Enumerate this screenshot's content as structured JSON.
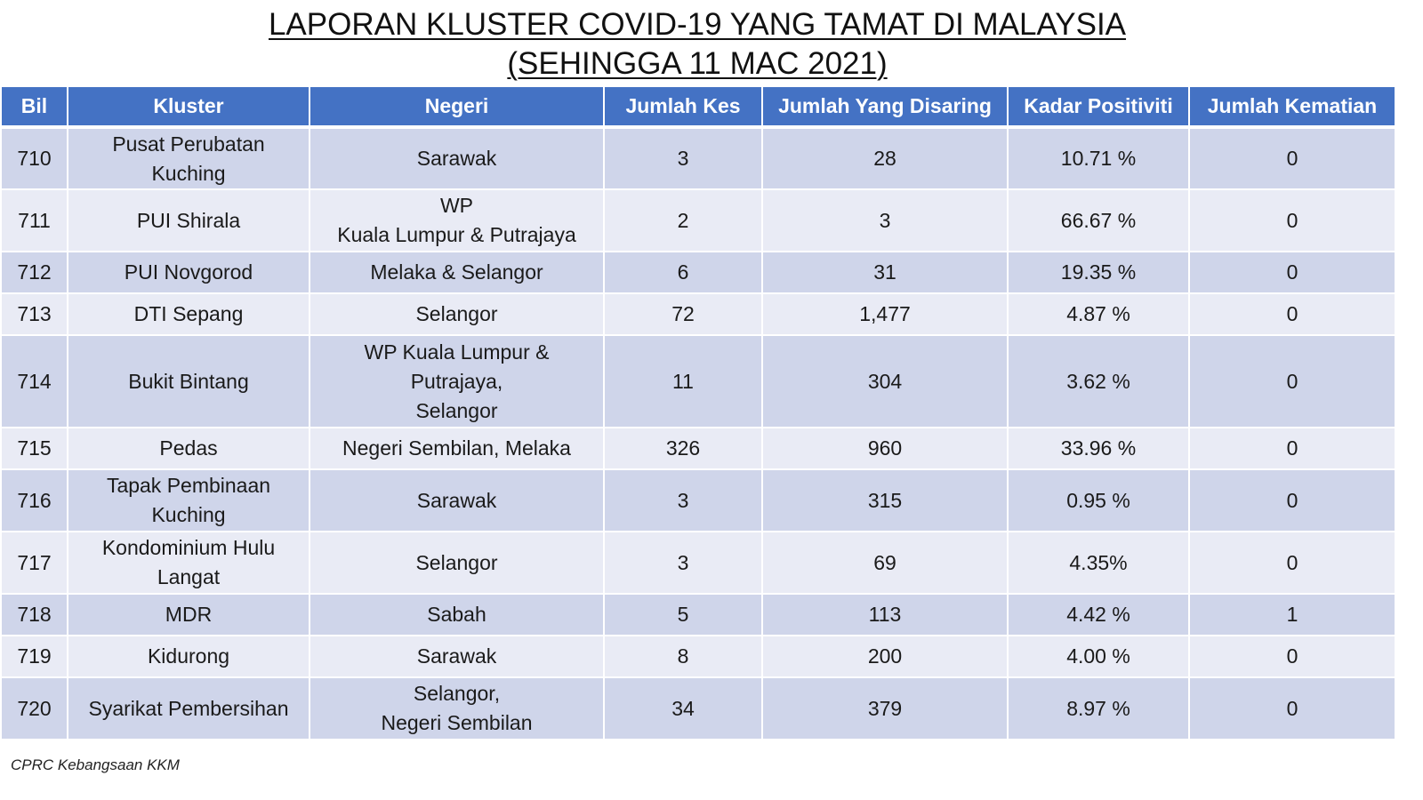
{
  "title": {
    "line1": "LAPORAN KLUSTER COVID-19 YANG TAMAT DI MALAYSIA",
    "line2": "(SEHINGGA 11 MAC 2021)"
  },
  "table": {
    "headers": [
      "Bil",
      "Kluster",
      "Negeri",
      "Jumlah Kes",
      "Jumlah Yang Disaring",
      "Kadar Positiviti",
      "Jumlah Kematian"
    ],
    "rows": [
      {
        "bil": "710",
        "kluster": [
          "Pusat Perubatan",
          "Kuching"
        ],
        "negeri": [
          "Sarawak"
        ],
        "kes": "3",
        "disaring": "28",
        "positiviti": "10.71 %",
        "kematian": "0"
      },
      {
        "bil": "711",
        "kluster": [
          "PUI Shirala"
        ],
        "negeri": [
          "WP",
          "Kuala Lumpur & Putrajaya"
        ],
        "kes": "2",
        "disaring": "3",
        "positiviti": "66.67 %",
        "kematian": "0"
      },
      {
        "bil": "712",
        "kluster": [
          "PUI Novgorod"
        ],
        "negeri": [
          "Melaka & Selangor"
        ],
        "kes": "6",
        "disaring": "31",
        "positiviti": "19.35 %",
        "kematian": "0"
      },
      {
        "bil": "713",
        "kluster": [
          "DTI Sepang"
        ],
        "negeri": [
          "Selangor"
        ],
        "kes": "72",
        "disaring": "1,477",
        "positiviti": "4.87 %",
        "kematian": "0"
      },
      {
        "bil": "714",
        "kluster": [
          "Bukit Bintang"
        ],
        "negeri": [
          "WP Kuala Lumpur &",
          "Putrajaya,",
          "Selangor"
        ],
        "kes": "11",
        "disaring": "304",
        "positiviti": "3.62 %",
        "kematian": "0"
      },
      {
        "bil": "715",
        "kluster": [
          "Pedas"
        ],
        "negeri": [
          "Negeri Sembilan, Melaka"
        ],
        "kes": "326",
        "disaring": "960",
        "positiviti": "33.96 %",
        "kematian": "0"
      },
      {
        "bil": "716",
        "kluster": [
          "Tapak Pembinaan",
          "Kuching"
        ],
        "negeri": [
          "Sarawak"
        ],
        "kes": "3",
        "disaring": "315",
        "positiviti": "0.95 %",
        "kematian": "0"
      },
      {
        "bil": "717",
        "kluster": [
          "Kondominium Hulu",
          "Langat"
        ],
        "negeri": [
          "Selangor"
        ],
        "kes": "3",
        "disaring": "69",
        "positiviti": "4.35%",
        "kematian": "0"
      },
      {
        "bil": "718",
        "kluster": [
          "MDR"
        ],
        "negeri": [
          "Sabah"
        ],
        "kes": "5",
        "disaring": "113",
        "positiviti": "4.42 %",
        "kematian": "1"
      },
      {
        "bil": "719",
        "kluster": [
          "Kidurong"
        ],
        "negeri": [
          "Sarawak"
        ],
        "kes": "8",
        "disaring": "200",
        "positiviti": "4.00 %",
        "kematian": "0"
      },
      {
        "bil": "720",
        "kluster": [
          "Syarikat Pembersihan"
        ],
        "negeri": [
          "Selangor,",
          "Negeri Sembilan"
        ],
        "kes": "34",
        "disaring": "379",
        "positiviti": "8.97 %",
        "kematian": "0"
      }
    ]
  },
  "footer": "CPRC Kebangsaan KKM",
  "colors": {
    "header_bg": "#4472c4",
    "row_dark": "#cfd5ea",
    "row_light": "#e9ebf5"
  }
}
